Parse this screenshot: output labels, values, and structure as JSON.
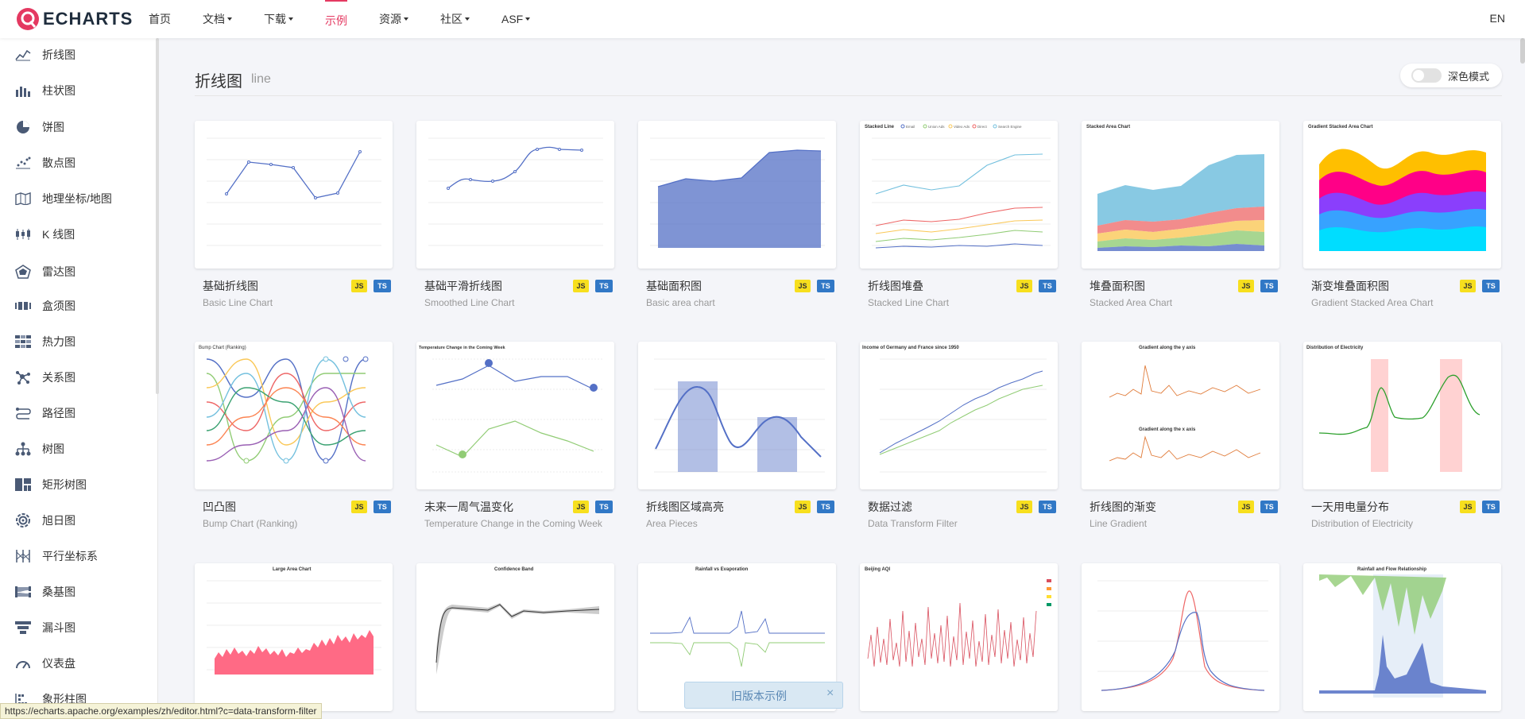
{
  "header": {
    "logo_text": "ECHARTS",
    "nav": [
      {
        "label": "首页",
        "dropdown": false,
        "active": false
      },
      {
        "label": "文档",
        "dropdown": true,
        "active": false
      },
      {
        "label": "下载",
        "dropdown": true,
        "active": false
      },
      {
        "label": "示例",
        "dropdown": false,
        "active": true
      },
      {
        "label": "资源",
        "dropdown": true,
        "active": false
      },
      {
        "label": "社区",
        "dropdown": true,
        "active": false
      },
      {
        "label": "ASF",
        "dropdown": true,
        "active": false
      }
    ],
    "lang": "EN",
    "accent": "#e43961"
  },
  "sidebar": {
    "items": [
      {
        "label": "折线图",
        "icon": "line-chart-icon"
      },
      {
        "label": "柱状图",
        "icon": "bar-chart-icon"
      },
      {
        "label": "饼图",
        "icon": "pie-chart-icon"
      },
      {
        "label": "散点图",
        "icon": "scatter-chart-icon"
      },
      {
        "label": "地理坐标/地图",
        "icon": "map-icon"
      },
      {
        "label": "K 线图",
        "icon": "candlestick-icon"
      },
      {
        "label": "雷达图",
        "icon": "radar-icon"
      },
      {
        "label": "盒须图",
        "icon": "boxplot-icon"
      },
      {
        "label": "热力图",
        "icon": "heatmap-icon"
      },
      {
        "label": "关系图",
        "icon": "graph-icon"
      },
      {
        "label": "路径图",
        "icon": "lines-icon"
      },
      {
        "label": "树图",
        "icon": "tree-icon"
      },
      {
        "label": "矩形树图",
        "icon": "treemap-icon"
      },
      {
        "label": "旭日图",
        "icon": "sunburst-icon"
      },
      {
        "label": "平行坐标系",
        "icon": "parallel-icon"
      },
      {
        "label": "桑基图",
        "icon": "sankey-icon"
      },
      {
        "label": "漏斗图",
        "icon": "funnel-icon"
      },
      {
        "label": "仪表盘",
        "icon": "gauge-icon"
      },
      {
        "label": "象形柱图",
        "icon": "pictorial-bar-icon"
      }
    ]
  },
  "main": {
    "title": "折线图",
    "subtitle": "line",
    "dark_mode_label": "深色模式",
    "badge_js": "JS",
    "badge_ts": "TS",
    "cards": [
      {
        "title": "基础折线图",
        "subtitle": "Basic Line Chart"
      },
      {
        "title": "基础平滑折线图",
        "subtitle": "Smoothed Line Chart"
      },
      {
        "title": "基础面积图",
        "subtitle": "Basic area chart"
      },
      {
        "title": "折线图堆叠",
        "subtitle": "Stacked Line Chart"
      },
      {
        "title": "堆叠面积图",
        "subtitle": "Stacked Area Chart"
      },
      {
        "title": "渐变堆叠面积图",
        "subtitle": "Gradient Stacked Area Chart"
      },
      {
        "title": "凹凸图",
        "subtitle": "Bump Chart (Ranking)"
      },
      {
        "title": "未来一周气温变化",
        "subtitle": "Temperature Change in the Coming Week"
      },
      {
        "title": "折线图区域高亮",
        "subtitle": "Area Pieces"
      },
      {
        "title": "数据过滤",
        "subtitle": "Data Transform Filter"
      },
      {
        "title": "折线图的渐变",
        "subtitle": "Line Gradient"
      },
      {
        "title": "一天用电量分布",
        "subtitle": "Distribution of Electricity"
      },
      {
        "title": "",
        "subtitle": ""
      },
      {
        "title": "",
        "subtitle": ""
      },
      {
        "title": "",
        "subtitle": ""
      },
      {
        "title": "",
        "subtitle": ""
      },
      {
        "title": "",
        "subtitle": ""
      },
      {
        "title": "",
        "subtitle": ""
      }
    ],
    "thumb_titles": {
      "stacked_line": "Stacked Line",
      "stacked_area": "Stacked Area Chart",
      "gradient_stacked": "Gradient Stacked Area Chart",
      "bump": "Bump Chart (Ranking)",
      "temperature": "Temperature Change in the Coming Week",
      "income": "Income of Germany and France since 1950",
      "gradient_y": "Gradient along the y axis",
      "gradient_x": "Gradient along the x axis",
      "electricity": "Distribution of Electricity",
      "large_area": "Large Area Chart",
      "confidence": "Confidence Band",
      "rainfall": "Rainfall vs Evaporation",
      "beijing": "Beijing AQI",
      "rainfall_flow": "Rainfall and Flow Relationship"
    },
    "legend_stacked": [
      "Email",
      "Union Ads",
      "Video Ads",
      "Direct",
      "Search Engine"
    ]
  },
  "toast": {
    "text": "旧版本示例",
    "close": "×"
  },
  "status_url": "https://echarts.apache.org/examples/zh/editor.html?c=data-transform-filter"
}
